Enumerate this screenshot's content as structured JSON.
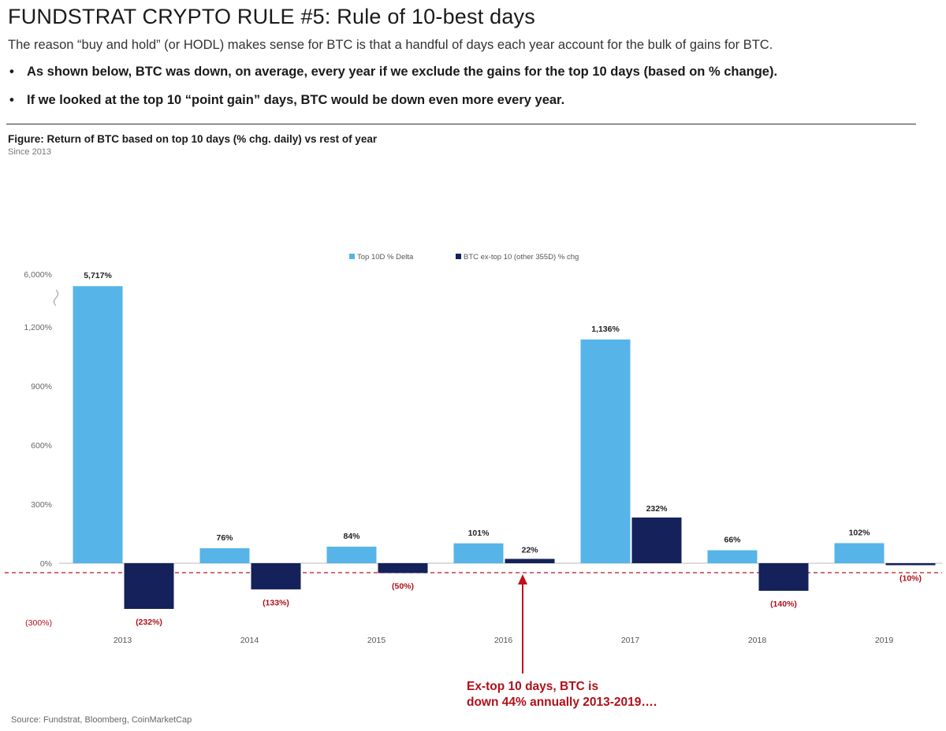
{
  "header": {
    "title": "FUNDSTRAT CRYPTO RULE #5: Rule of 10-best days",
    "subtitle": "The reason “buy and hold” (or HODL) makes sense for BTC is that a handful of days each year account for the bulk of gains for BTC.",
    "bullets": [
      "As shown below, BTC was down, on average, every year if we exclude the gains for the top 10 days (based on % change).",
      "If we looked at the top 10 “point gain” days, BTC  would be down even more every year."
    ],
    "bullet_marker": "•"
  },
  "figure": {
    "title": "Figure: Return of BTC based on top 10 days (% chg. daily) vs rest of year",
    "subtitle": "Since 2013",
    "source": "Source: Fundstrat, Bloomberg, CoinMarketCap"
  },
  "callout": {
    "line1": "Ex-top 10 days, BTC is",
    "line2": "down 44% annually 2013-2019….",
    "color": "#b0101a"
  },
  "chart_data": {
    "type": "bar",
    "categories": [
      "2013",
      "2014",
      "2015",
      "2016",
      "2017",
      "2018",
      "2019"
    ],
    "series": [
      {
        "name": "Top 10D % Delta",
        "color": "#56b4e9",
        "values": [
          5717,
          76,
          84,
          101,
          1136,
          66,
          102
        ],
        "labels": [
          "5,717%",
          "76%",
          "84%",
          "101%",
          "1,136%",
          "66%",
          "102%"
        ]
      },
      {
        "name": "BTC ex-top 10 (other 355D) % chg",
        "color": "#14215a",
        "values": [
          -232,
          -133,
          -50,
          22,
          232,
          -140,
          -10
        ],
        "labels": [
          "(232%)",
          "(133%)",
          "(50%)",
          "22%",
          "232%",
          "(140%)",
          "(10%)"
        ]
      }
    ],
    "y_tick_labels": [
      "(300%)",
      "0%",
      "300%",
      "600%",
      "900%",
      "1,200%",
      "6,000%"
    ],
    "y_ticks": [
      -300,
      0,
      300,
      600,
      900,
      1200,
      6000
    ],
    "ylim": [
      -300,
      6000
    ],
    "axis_break": "between 1,200% and 6,000%",
    "reference_line": {
      "value": -44,
      "style": "dashed",
      "color": "#c0101a"
    },
    "grid": false,
    "legend_position": "top-center"
  }
}
